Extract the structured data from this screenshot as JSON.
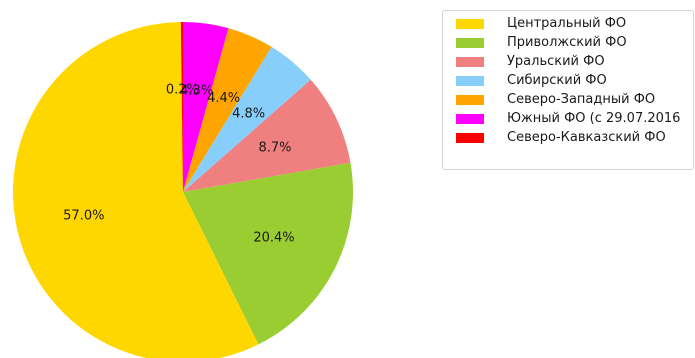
{
  "chart_data": {
    "type": "pie",
    "start_angle_deg": 90,
    "direction": "clockwise",
    "legend_position": "top-right",
    "slices": [
      {
        "label": "Южный ФО (с 29.07.2016",
        "value": 4.3,
        "value_label": "4.3%",
        "color": "#ff00ff"
      },
      {
        "label": "Северо-Западный ФО",
        "value": 4.4,
        "value_label": "4.4%",
        "color": "#ffa500"
      },
      {
        "label": "Сибирский ФО",
        "value": 4.8,
        "value_label": "4.8%",
        "color": "#87cefa"
      },
      {
        "label": "Уральский ФО",
        "value": 8.7,
        "value_label": "8.7%",
        "color": "#f08080"
      },
      {
        "label": "Приволжский ФО",
        "value": 20.4,
        "value_label": "20.4%",
        "color": "#9acd32"
      },
      {
        "label": "Центральный ФО",
        "value": 57.0,
        "value_label": "57.0%",
        "color": "#ffd700"
      },
      {
        "label": "Северо-Кавказский ФО",
        "value": 0.2,
        "value_label": "0.2%",
        "color": "#ff0000"
      }
    ],
    "legend_entries": [
      {
        "label": "Центральный ФО",
        "color": "#ffd700"
      },
      {
        "label": "Приволжский ФО",
        "color": "#9acd32"
      },
      {
        "label": "Уральский ФО",
        "color": "#f08080"
      },
      {
        "label": "Сибирский ФО",
        "color": "#87cefa"
      },
      {
        "label": "Северо-Западный ФО",
        "color": "#ffa500"
      },
      {
        "label": "Южный ФО (с 29.07.2016",
        "color": "#ff00ff"
      },
      {
        "label": "Северо-Кавказский ФО",
        "color": "#ff0000"
      }
    ]
  }
}
